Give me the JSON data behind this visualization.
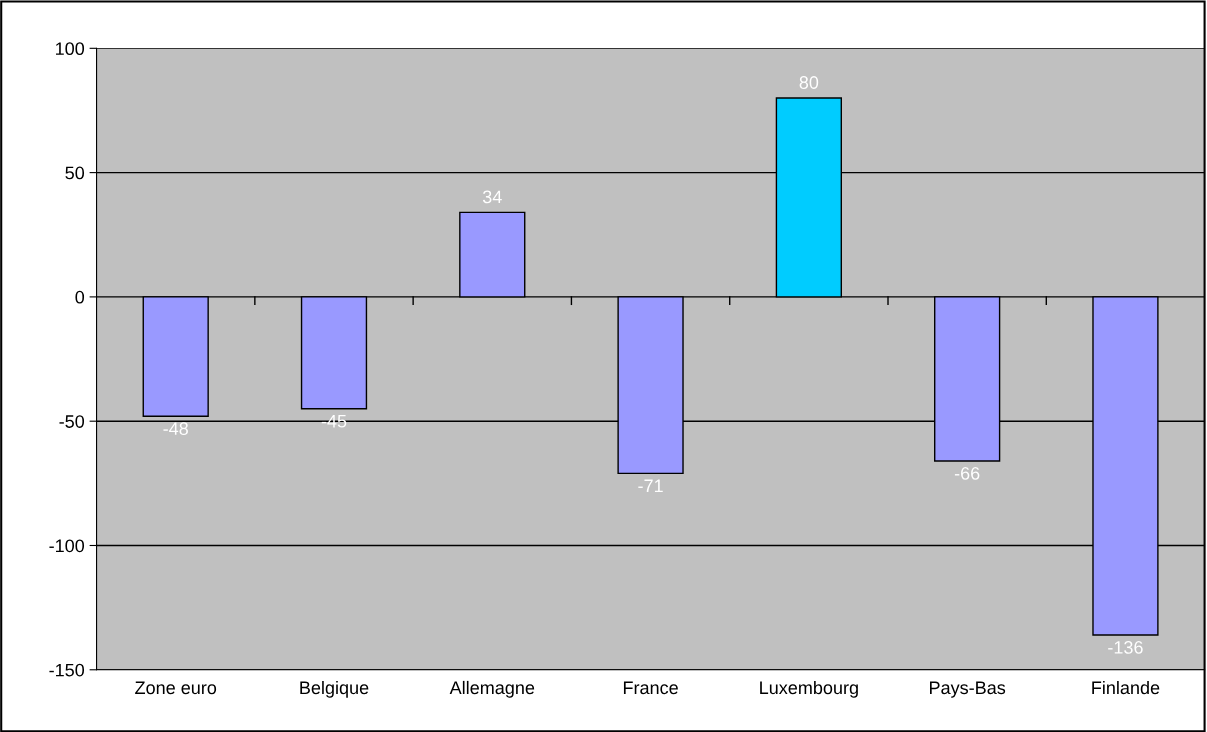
{
  "chart_data": {
    "type": "bar",
    "categories": [
      "Zone euro",
      "Belgique",
      "Allemagne",
      "France",
      "Luxembourg",
      "Pays-Bas",
      "Finlande"
    ],
    "values": [
      -48,
      -45,
      34,
      -71,
      80,
      -66,
      -136
    ],
    "colors": [
      "#9999ff",
      "#9999ff",
      "#9999ff",
      "#9999ff",
      "#00ccff",
      "#9999ff",
      "#9999ff"
    ],
    "ylim": [
      -150,
      100
    ],
    "yticks": [
      -150,
      -100,
      -50,
      0,
      50,
      100
    ],
    "grid": "y",
    "data_labels": true
  }
}
